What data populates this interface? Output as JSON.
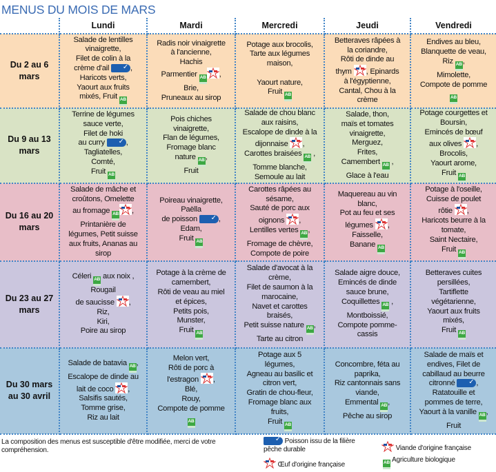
{
  "title": "MENUS DU MOIS DE MARS",
  "days": [
    "Lundi",
    "Mardi",
    "Mercredi",
    "Jeudi",
    "Vendredi"
  ],
  "colors": {
    "title": "#3a6bb3",
    "grid": "#3f83c6",
    "row_colors": [
      "#fbdcb9",
      "#d9e3c5",
      "#e8bec8",
      "#cbc6de",
      "#a9c8de"
    ]
  },
  "weeks": [
    {
      "label": "Du 2 au 6 mars",
      "cells": [
        [
          [
            "Salade de lentilles"
          ],
          [
            "vinaigrette,"
          ],
          [
            "Filet de colin à la"
          ],
          [
            "crème d'ail ",
            {
              "icon": "msc"
            },
            ","
          ],
          [
            "Haricots verts,"
          ],
          [
            "Yaourt aux fruits"
          ],
          [
            "mixés, Fruit ",
            {
              "icon": "bio"
            }
          ]
        ],
        [
          [
            "Radis noir vinaigrette"
          ],
          [
            "à l'ancienne,"
          ],
          [
            "Hachis"
          ],
          [
            "Parmentier ",
            {
              "icon": "bio"
            },
            {
              "icon": "fr"
            },
            ","
          ],
          [
            "Brie,"
          ],
          [
            "Pruneaux au sirop"
          ]
        ],
        [
          [
            "Potage aux brocolis,"
          ],
          [
            "Tarte aux légumes"
          ],
          [
            "maison,"
          ],
          [
            ""
          ],
          [
            "Yaourt nature,"
          ],
          [
            "Fruit ",
            {
              "icon": "bio"
            }
          ]
        ],
        [
          [
            "Betteraves râpées à"
          ],
          [
            "la coriandre,"
          ],
          [
            "Rôti de dinde au"
          ],
          [
            "thym ",
            {
              "icon": "fr"
            },
            ", Epinards"
          ],
          [
            "à l'égyptienne,"
          ],
          [
            "Cantal, Chou à la"
          ],
          [
            "crème"
          ]
        ],
        [
          [
            "Endives au bleu,"
          ],
          [
            "Blanquette de veau,"
          ],
          [
            "Riz ",
            {
              "icon": "bio"
            },
            ","
          ],
          [
            "Mimolette,"
          ],
          [
            "Compote de pomme"
          ],
          [
            {
              "icon": "bio"
            }
          ]
        ]
      ]
    },
    {
      "label": "Du 9 au 13 mars",
      "cells": [
        [
          [
            "Terrine de légumes"
          ],
          [
            "sauce verte,"
          ],
          [
            "Filet de hoki"
          ],
          [
            "au curry ",
            {
              "icon": "msc"
            },
            ","
          ],
          [
            "Tagliatelles,"
          ],
          [
            "Comté,"
          ],
          [
            "Fruit ",
            {
              "icon": "bio"
            }
          ]
        ],
        [
          [
            "Pois chiches"
          ],
          [
            "vinaigrette,"
          ],
          [
            "Flan de légumes,"
          ],
          [
            "Fromage blanc"
          ],
          [
            "nature ",
            {
              "icon": "bio"
            },
            ","
          ],
          [
            "Fruit"
          ]
        ],
        [
          [
            "Salade de chou blanc"
          ],
          [
            "aux raisins,"
          ],
          [
            "Escalope de dinde à la"
          ],
          [
            "dijonnaise ",
            {
              "icon": "fr"
            },
            ","
          ],
          [
            "Carottes braisées ",
            {
              "icon": "bio"
            },
            " ,"
          ],
          [
            "Tomme blanche,"
          ],
          [
            "Semoule au lait"
          ]
        ],
        [
          [
            "Salade, thon,"
          ],
          [
            "maïs et tomates"
          ],
          [
            "vinaigrette,"
          ],
          [
            "Merguez,"
          ],
          [
            "Frites,"
          ],
          [
            "Camembert ",
            {
              "icon": "bio"
            },
            " ,"
          ],
          [
            "Glace à l'eau"
          ]
        ],
        [
          [
            "Potage courgettes et"
          ],
          [
            "Boursin,"
          ],
          [
            "Emincés de bœuf"
          ],
          [
            "aux olives ",
            {
              "icon": "fr"
            },
            ","
          ],
          [
            "Brocolis,"
          ],
          [
            "Yaourt arome,"
          ],
          [
            "Fruit ",
            {
              "icon": "bio"
            }
          ]
        ]
      ]
    },
    {
      "label": "Du 16 au 20 mars",
      "cells": [
        [
          [
            "Salade de mâche et"
          ],
          [
            "croûtons, Omelette"
          ],
          [
            "au fromage ",
            {
              "icon": "bio"
            },
            {
              "icon": "oeuf"
            },
            ","
          ],
          [
            "Printanière de"
          ],
          [
            "légumes, Petit suisse"
          ],
          [
            "aux fruits, Ananas au"
          ],
          [
            "sirop"
          ]
        ],
        [
          [
            "Poireau vinaigrette,"
          ],
          [
            "Paëlla"
          ],
          [
            "de poisson ",
            {
              "icon": "msc"
            },
            ","
          ],
          [
            "Edam,"
          ],
          [
            "Fruit ",
            {
              "icon": "bio"
            }
          ]
        ],
        [
          [
            "Carottes râpées au"
          ],
          [
            "sésame,"
          ],
          [
            "Sauté de porc aux"
          ],
          [
            "oignons ",
            {
              "icon": "fr"
            },
            ","
          ],
          [
            "Lentilles vertes ",
            {
              "icon": "bio"
            },
            ","
          ],
          [
            "Fromage de chèvre,"
          ],
          [
            "Compote de poire"
          ]
        ],
        [
          [
            "Maquereau au vin"
          ],
          [
            "blanc,"
          ],
          [
            "Pot au feu et ses"
          ],
          [
            "légumes ",
            {
              "icon": "fr"
            },
            ","
          ],
          [
            "Faisselle,"
          ],
          [
            "Banane ",
            {
              "icon": "bio"
            }
          ]
        ],
        [
          [
            "Potage à l'oseille,"
          ],
          [
            "Cuisse de poulet"
          ],
          [
            "rôtie ",
            {
              "icon": "fr"
            },
            ","
          ],
          [
            "Haricots beurre à la"
          ],
          [
            "tomate,"
          ],
          [
            "Saint Nectaire,"
          ],
          [
            "Fruit ",
            {
              "icon": "bio"
            }
          ]
        ]
      ]
    },
    {
      "label": "Du 23 au 27 mars",
      "cells": [
        [
          [
            "Céleri ",
            {
              "icon": "bio"
            },
            " aux noix ,"
          ],
          [
            "Rougail"
          ],
          [
            "de saucisse ",
            {
              "icon": "fr"
            },
            ","
          ],
          [
            "Riz,"
          ],
          [
            "Kiri,"
          ],
          [
            "Poire au sirop"
          ]
        ],
        [
          [
            "Potage à la crème de"
          ],
          [
            "camembert,"
          ],
          [
            "Rôti de veau au miel"
          ],
          [
            "et épices,"
          ],
          [
            "Petits pois,"
          ],
          [
            "Munster,"
          ],
          [
            "Fruit ",
            {
              "icon": "bio"
            }
          ]
        ],
        [
          [
            "Salade d'avocat à la"
          ],
          [
            "crème,"
          ],
          [
            "Filet de saumon à la"
          ],
          [
            "marocaine,"
          ],
          [
            "Navet et carottes"
          ],
          [
            "braisés,"
          ],
          [
            "Petit suisse nature ",
            {
              "icon": "bio"
            },
            ","
          ],
          [
            "Tarte au citron"
          ]
        ],
        [
          [
            "Salade aigre douce,"
          ],
          [
            "Emincés de dinde"
          ],
          [
            "sauce brune,"
          ],
          [
            "Coquillettes ",
            {
              "icon": "bio"
            },
            " ,"
          ],
          [
            "Montboissié,"
          ],
          [
            "Compote pomme-"
          ],
          [
            "cassis"
          ]
        ],
        [
          [
            "Betteraves cuites"
          ],
          [
            "persillées,"
          ],
          [
            "Tartiflette"
          ],
          [
            "végétarienne,"
          ],
          [
            "Yaourt aux fruits"
          ],
          [
            "mixés,"
          ],
          [
            "Fruit ",
            {
              "icon": "bio"
            }
          ]
        ]
      ]
    },
    {
      "label": "Du 30 mars au 30 avril",
      "cells": [
        [
          [
            "Salade de batavia ",
            {
              "icon": "bio"
            },
            ","
          ],
          [
            "Escalope de dinde au"
          ],
          [
            "lait de coco ",
            {
              "icon": "fr"
            },
            ","
          ],
          [
            "Salsifis sautés,"
          ],
          [
            "Tomme grise,"
          ],
          [
            "Riz au lait"
          ]
        ],
        [
          [
            "Melon vert,"
          ],
          [
            "Rôti de porc à"
          ],
          [
            "l'estragon ",
            {
              "icon": "fr"
            },
            ","
          ],
          [
            "Blé,"
          ],
          [
            "Rouy,"
          ],
          [
            "Compote de pomme"
          ],
          [
            {
              "icon": "bio"
            }
          ]
        ],
        [
          [
            "Potage aux 5"
          ],
          [
            "légumes,"
          ],
          [
            "Agneau au basilic et"
          ],
          [
            "citron vert,"
          ],
          [
            "Gratin de chou-fleur,"
          ],
          [
            "Fromage blanc aux"
          ],
          [
            "fruits,"
          ],
          [
            "Fruit ",
            {
              "icon": "bio"
            }
          ]
        ],
        [
          [
            "Concombre, féta au"
          ],
          [
            "paprika,"
          ],
          [
            "Riz cantonnais sans"
          ],
          [
            "viande,"
          ],
          [
            "Emmental ",
            {
              "icon": "bio"
            },
            ","
          ],
          [
            "Pêche au sirop"
          ]
        ],
        [
          [
            "Salade de maïs et"
          ],
          [
            "endives, Filet de"
          ],
          [
            "cabillaud au beurre"
          ],
          [
            "citronné ",
            {
              "icon": "msc"
            },
            ","
          ],
          [
            "Ratatouille et"
          ],
          [
            "pommes de terre,"
          ],
          [
            "Yaourt à la vanille ",
            {
              "icon": "bio"
            },
            ","
          ],
          [
            "Fruit"
          ]
        ]
      ]
    }
  ],
  "footer": {
    "note": "La composition des menus est susceptible d'être modifiée, merci de votre compréhension.",
    "legend": {
      "msc": "Poisson issu de la filière pêche durable",
      "oeuf": "Œuf d'origine française",
      "fr": "Viande d'origine française",
      "bio": "Agriculture biologique"
    },
    "bio_icon_text": "AB"
  }
}
